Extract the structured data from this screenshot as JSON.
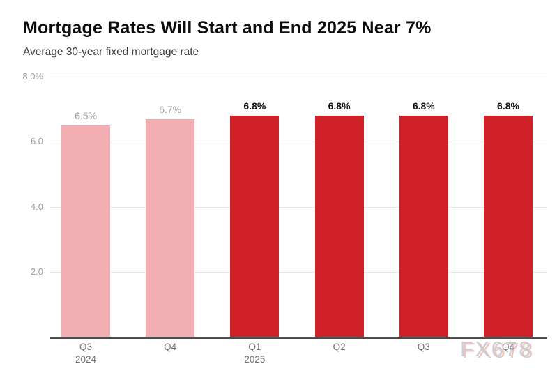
{
  "title": "Mortgage Rates Will Start and End 2025 Near 7%",
  "subtitle": "Average 30-year fixed mortgage rate",
  "watermark": "FX678",
  "colors": {
    "bar_actual_pink": "#f2aeb3",
    "bar_forecast_red": "#cf2127",
    "value_label_actual": "#9d9d9d",
    "value_label_forecast": "#141414",
    "y_axis_label": "#9d9d9d",
    "x_axis_label": "#707070",
    "gridline": "#e7e7e7",
    "baseline": "#4c4c4c"
  },
  "chart_data": {
    "type": "bar",
    "title": "Mortgage Rates Will Start and End 2025 Near 7%",
    "subtitle": "Average 30-year fixed mortgage rate",
    "categories": [
      "Q3",
      "Q4",
      "Q1",
      "Q2",
      "Q3",
      "Q4"
    ],
    "year_labels": [
      "2024",
      "",
      "2025",
      "",
      "",
      ""
    ],
    "values": [
      6.5,
      6.7,
      6.8,
      6.8,
      6.8,
      6.8
    ],
    "value_labels": [
      "6.5%",
      "6.7%",
      "6.8%",
      "6.8%",
      "6.8%",
      "6.8%"
    ],
    "emphasized": [
      false,
      false,
      true,
      true,
      true,
      true
    ],
    "xlabel": "",
    "ylabel": "",
    "ylim": [
      0,
      8
    ],
    "yticks": [
      {
        "value": 8,
        "label": "8.0%"
      },
      {
        "value": 6,
        "label": "6.0"
      },
      {
        "value": 4,
        "label": "4.0"
      },
      {
        "value": 2,
        "label": "2.0"
      }
    ],
    "grid": true,
    "legend_position": "none"
  }
}
